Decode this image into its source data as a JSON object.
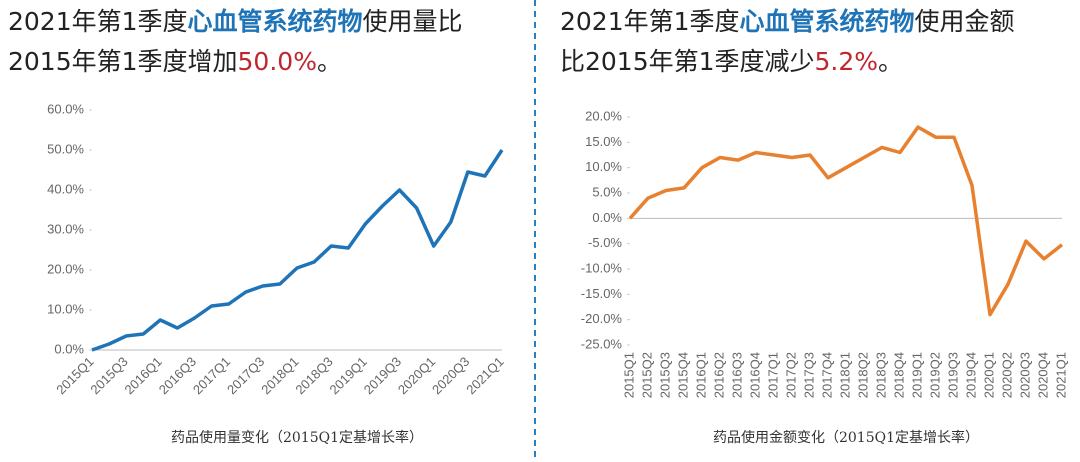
{
  "chart_data": [
    {
      "type": "line",
      "title_lines": [
        [
          "2021年第1季度",
          "心血管系统药物",
          "使用量比"
        ],
        [
          "2015年第1季度增加",
          "50.0%",
          "。"
        ]
      ],
      "x_label": "药品使用量变化（2015Q1定基增长率）",
      "categories": [
        "2015Q1",
        null,
        "2015Q3",
        null,
        "2016Q1",
        null,
        "2016Q3",
        null,
        "2017Q1",
        null,
        "2017Q3",
        null,
        "2018Q1",
        null,
        "2018Q3",
        null,
        "2019Q1",
        null,
        "2019Q3",
        null,
        "2020Q1",
        null,
        "2020Q3",
        null,
        "2021Q1"
      ],
      "series": [
        {
          "color": "#1f74b8",
          "values": [
            0,
            1.5,
            3.5,
            4,
            7.5,
            5.5,
            8,
            11,
            11.5,
            14.5,
            16,
            16.5,
            20.5,
            22,
            26,
            25.5,
            31.5,
            36,
            40,
            35.5,
            26,
            32,
            44.5,
            43.5,
            50
          ]
        }
      ],
      "ylim": [
        0,
        60
      ],
      "yticks": [
        {
          "value": 0,
          "label": "0.0%"
        },
        {
          "value": 10,
          "label": "10.0%"
        },
        {
          "value": 20,
          "label": "20.0%"
        },
        {
          "value": 30,
          "label": "30.0%"
        },
        {
          "value": 40,
          "label": "40.0%"
        },
        {
          "value": 50,
          "label": "50.0%"
        },
        {
          "value": 60,
          "label": "60.0%"
        }
      ]
    },
    {
      "type": "line",
      "title_lines": [
        [
          "2021年第1季度",
          "心血管系统药物",
          "使用金额"
        ],
        [
          "比2015年第1季度减少",
          "5.2%",
          "。"
        ]
      ],
      "x_label": "药品使用金额变化（2015Q1定基增长率）",
      "categories": [
        "2015Q1",
        "2015Q2",
        "2015Q3",
        "2015Q4",
        "2016Q1",
        "2016Q2",
        "2016Q3",
        "2016Q4",
        "2017Q1",
        "2017Q2",
        "2017Q3",
        "2017Q4",
        "2018Q1",
        "2018Q2",
        "2018Q3",
        "2018Q4",
        "2019Q1",
        "2019Q2",
        "2019Q3",
        "2019Q4",
        "2020Q1",
        "2020Q2",
        "2020Q3",
        "2020Q4",
        "2021Q1"
      ],
      "series": [
        {
          "color": "#e8812f",
          "values": [
            0,
            4,
            5.5,
            6,
            10,
            12,
            11.5,
            13,
            12.5,
            12,
            12.5,
            8,
            10,
            12,
            14,
            13,
            18,
            16,
            16,
            6.5,
            -19,
            -13,
            -4.5,
            -8,
            -5.2
          ]
        }
      ],
      "ylim": [
        -25,
        20
      ],
      "yticks": [
        {
          "value": -25,
          "label": "-25.0%"
        },
        {
          "value": -20,
          "label": "-20.0%"
        },
        {
          "value": -15,
          "label": "-15.0%"
        },
        {
          "value": -10,
          "label": "-10.0%"
        },
        {
          "value": -5,
          "label": "-5.0%"
        },
        {
          "value": 0,
          "label": "0.0%"
        },
        {
          "value": 5,
          "label": "5.0%"
        },
        {
          "value": 10,
          "label": "10.0%"
        },
        {
          "value": 15,
          "label": "15.0%"
        },
        {
          "value": 20,
          "label": "20.0%"
        }
      ]
    }
  ]
}
